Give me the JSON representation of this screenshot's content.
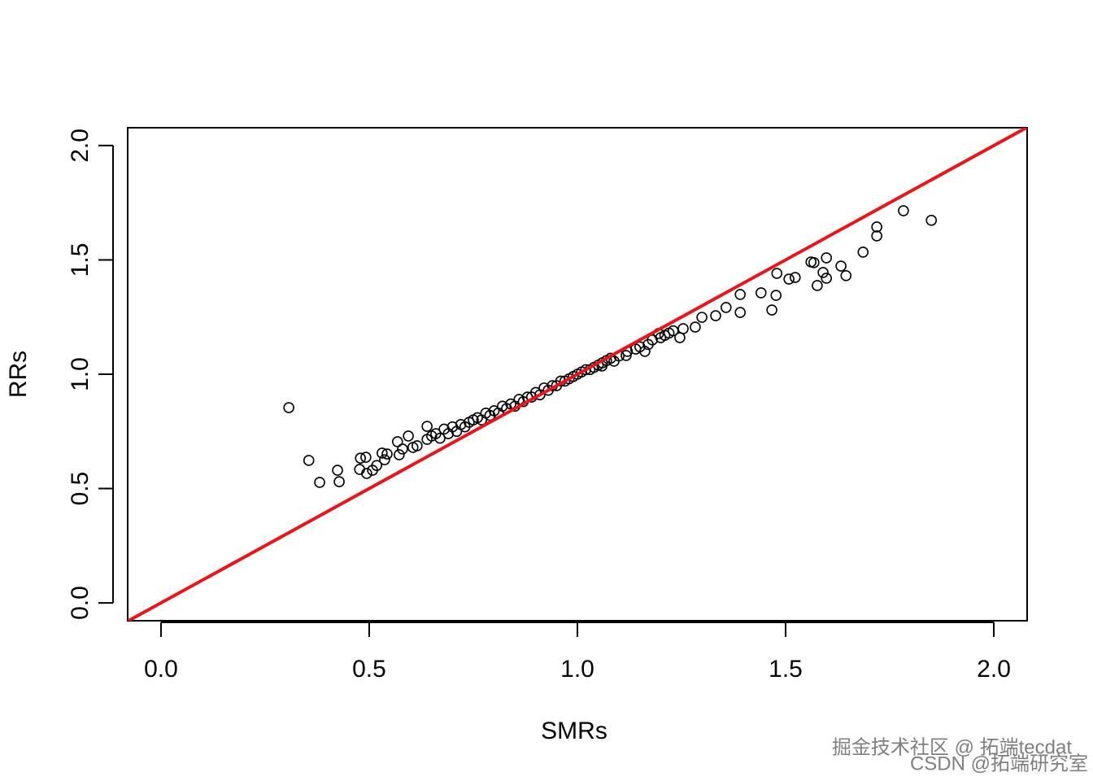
{
  "chart_data": {
    "type": "scatter",
    "xlabel": "SMRs",
    "ylabel": "RRs",
    "xlim": [
      -0.08,
      2.08
    ],
    "ylim": [
      -0.078,
      2.078
    ],
    "xticks": [
      {
        "value": 0,
        "label": "0.0"
      },
      0.5,
      {
        "value": 1,
        "label": "1.0"
      },
      1.5,
      {
        "value": 2,
        "label": "2.0"
      }
    ],
    "yticks": [
      {
        "value": 0,
        "label": "0.0"
      },
      0.5,
      {
        "value": 1,
        "label": "1.0"
      },
      1.5,
      {
        "value": 2,
        "label": "2.0"
      }
    ],
    "color": "#000000",
    "reference_line": {
      "intercept": 0,
      "slope": 1,
      "color": "#e8161b"
    },
    "x": [
      0.307,
      0.355,
      0.381,
      0.424,
      0.428,
      0.477,
      0.479,
      0.492,
      0.494,
      0.508,
      0.518,
      0.531,
      0.537,
      0.543,
      0.568,
      0.572,
      0.58,
      0.594,
      0.605,
      0.615,
      0.639,
      0.639,
      0.65,
      0.66,
      0.67,
      0.68,
      0.69,
      0.7,
      0.71,
      0.72,
      0.73,
      0.74,
      0.75,
      0.76,
      0.77,
      0.78,
      0.79,
      0.8,
      0.81,
      0.82,
      0.83,
      0.84,
      0.85,
      0.86,
      0.87,
      0.88,
      0.89,
      0.9,
      0.91,
      0.92,
      0.93,
      0.94,
      0.95,
      0.96,
      0.97,
      0.98,
      0.99,
      1.0,
      1.01,
      1.02,
      1.03,
      1.04,
      1.05,
      1.06,
      1.07,
      1.08,
      1.1,
      1.12,
      1.14,
      1.15,
      1.17,
      1.18,
      1.2,
      1.21,
      1.22,
      1.23,
      1.059,
      1.088,
      1.117,
      1.162,
      1.195,
      1.246,
      1.254,
      1.283,
      1.299,
      1.332,
      1.357,
      1.391,
      1.391,
      1.441,
      1.467,
      1.477,
      1.479,
      1.508,
      1.523,
      1.561,
      1.568,
      1.576,
      1.59,
      1.598,
      1.598,
      1.633,
      1.645,
      1.686,
      1.719,
      1.719,
      1.783,
      1.85
    ],
    "y": [
      0.854,
      0.623,
      0.527,
      0.58,
      0.53,
      0.584,
      0.633,
      0.637,
      0.566,
      0.58,
      0.601,
      0.655,
      0.626,
      0.651,
      0.705,
      0.648,
      0.673,
      0.73,
      0.68,
      0.687,
      0.772,
      0.715,
      0.73,
      0.74,
      0.72,
      0.76,
      0.74,
      0.77,
      0.75,
      0.78,
      0.77,
      0.79,
      0.8,
      0.81,
      0.8,
      0.83,
      0.82,
      0.84,
      0.83,
      0.86,
      0.85,
      0.87,
      0.86,
      0.89,
      0.88,
      0.9,
      0.9,
      0.92,
      0.91,
      0.94,
      0.93,
      0.95,
      0.95,
      0.97,
      0.97,
      0.98,
      0.99,
      1.0,
      1.01,
      1.02,
      1.02,
      1.03,
      1.04,
      1.05,
      1.06,
      1.07,
      1.08,
      1.1,
      1.11,
      1.12,
      1.13,
      1.15,
      1.16,
      1.17,
      1.18,
      1.19,
      1.036,
      1.057,
      1.082,
      1.1,
      1.178,
      1.16,
      1.199,
      1.206,
      1.249,
      1.256,
      1.292,
      1.349,
      1.27,
      1.356,
      1.281,
      1.345,
      1.441,
      1.416,
      1.423,
      1.491,
      1.488,
      1.388,
      1.445,
      1.509,
      1.42,
      1.473,
      1.431,
      1.534,
      1.644,
      1.605,
      1.715,
      1.673
    ]
  },
  "watermark": [
    "掘金技术社区 @ 拓端tecdat",
    "CSDN @拓端研究室"
  ]
}
